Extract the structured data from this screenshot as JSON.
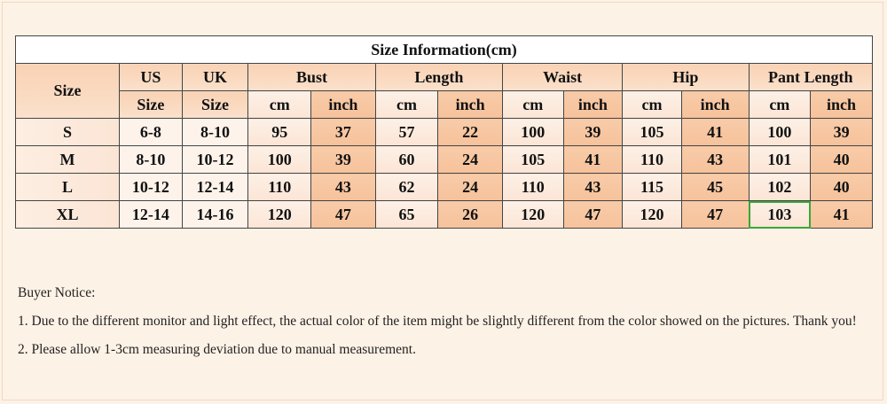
{
  "table": {
    "title": "Size Information(cm)",
    "headers": {
      "size": "Size",
      "us_top": "US",
      "us_bottom": "Size",
      "uk_top": "UK",
      "uk_bottom": "Size",
      "groups": [
        "Bust",
        "Length",
        "Waist",
        "Hip",
        "Pant Length"
      ],
      "unit_cm": "cm",
      "unit_inch": "inch"
    },
    "rows": [
      {
        "size": "S",
        "us": "6-8",
        "uk": "8-10",
        "vals": [
          "95",
          "37",
          "57",
          "22",
          "100",
          "39",
          "105",
          "41",
          "100",
          "39"
        ]
      },
      {
        "size": "M",
        "us": "8-10",
        "uk": "10-12",
        "vals": [
          "100",
          "39",
          "60",
          "24",
          "105",
          "41",
          "110",
          "43",
          "101",
          "40"
        ]
      },
      {
        "size": "L",
        "us": "10-12",
        "uk": "12-14",
        "vals": [
          "110",
          "43",
          "62",
          "24",
          "110",
          "43",
          "115",
          "45",
          "102",
          "40"
        ]
      },
      {
        "size": "XL",
        "us": "12-14",
        "uk": "14-16",
        "vals": [
          "120",
          "47",
          "65",
          "26",
          "120",
          "47",
          "120",
          "47",
          "103",
          "41"
        ]
      }
    ]
  },
  "notice": {
    "heading": "Buyer Notice:",
    "line1": "1. Due to the different monitor and light effect, the actual color of the item might be slightly different from the color showed on the pictures. Thank you!",
    "line2": "2. Please allow 1-3cm measuring deviation due to manual measurement."
  },
  "colors": {
    "background": "#fdf2e6",
    "header": "#f9d2b4",
    "inch_column": "#f6c29b",
    "selected_cell_border": "#3aa63a"
  }
}
